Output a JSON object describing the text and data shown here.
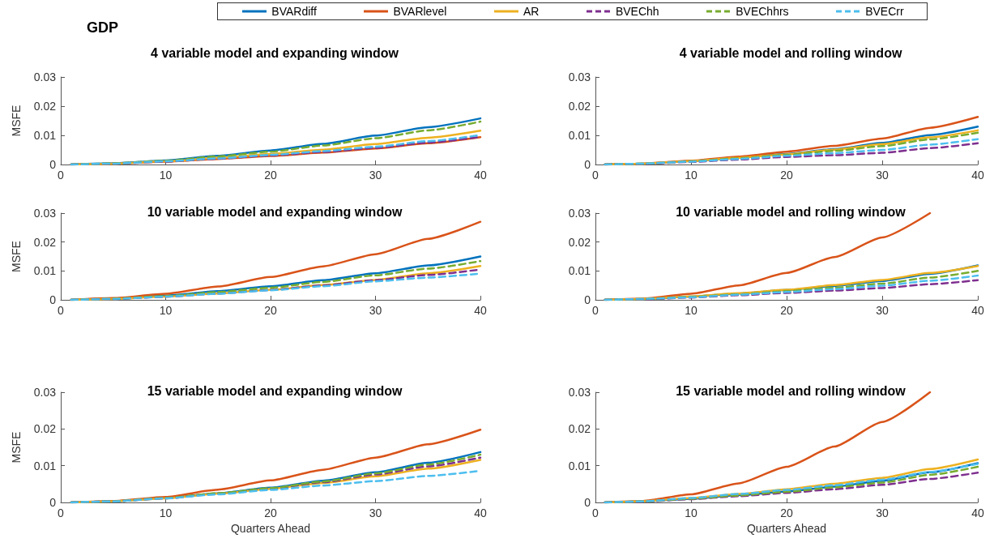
{
  "chart_data": [
    {
      "type": "line",
      "title": "4 variable model and expanding window",
      "ylabel": "MSFE",
      "annotations": [
        "GDP"
      ],
      "legend": "top",
      "grid": false,
      "marker": "none",
      "x": [
        1,
        5,
        10,
        15,
        20,
        25,
        30,
        35,
        40
      ],
      "xlim": [
        0,
        40
      ],
      "xticks": [
        0,
        10,
        20,
        30,
        40
      ],
      "ylim": [
        0,
        0.03
      ],
      "yticks": [
        0,
        0.01,
        0.02,
        0.03
      ],
      "series": [
        {
          "name": "BVARdiff",
          "color": "#0072bd",
          "line_style": "solid",
          "values": [
            0,
            0.0004,
            0.0014,
            0.003,
            0.0048,
            0.0071,
            0.0099,
            0.0128,
            0.0158
          ]
        },
        {
          "name": "BVARlevel",
          "color": "#d95319",
          "line_style": "solid",
          "values": [
            0,
            0.0003,
            0.001,
            0.0019,
            0.0029,
            0.0041,
            0.0055,
            0.0073,
            0.0094
          ]
        },
        {
          "name": "AR",
          "color": "#edb120",
          "line_style": "solid",
          "values": [
            0,
            0.0003,
            0.0011,
            0.0023,
            0.0036,
            0.0051,
            0.007,
            0.0092,
            0.0116
          ]
        },
        {
          "name": "BVEChh",
          "color": "#7e2f8e",
          "line_style": "dashed",
          "values": [
            0,
            0.0003,
            0.001,
            0.002,
            0.0031,
            0.0043,
            0.0057,
            0.0075,
            0.0095
          ]
        },
        {
          "name": "BVEChhrs",
          "color": "#77ac30",
          "line_style": "dashed",
          "values": [
            0,
            0.0004,
            0.0013,
            0.0028,
            0.0044,
            0.0065,
            0.009,
            0.0117,
            0.0147
          ]
        },
        {
          "name": "BVECrr",
          "color": "#4dbeee",
          "line_style": "dashed",
          "values": [
            0,
            0.0003,
            0.0011,
            0.0021,
            0.0033,
            0.0046,
            0.0061,
            0.008,
            0.0101
          ]
        }
      ]
    },
    {
      "type": "line",
      "title": "4 variable model and rolling window",
      "grid": false,
      "marker": "none",
      "x": [
        1,
        5,
        10,
        15,
        20,
        25,
        30,
        35,
        40
      ],
      "xlim": [
        0,
        40
      ],
      "xticks": [
        0,
        10,
        20,
        30,
        40
      ],
      "ylim": [
        0,
        0.03
      ],
      "yticks": [
        0,
        0.01,
        0.02,
        0.03
      ],
      "series": [
        {
          "color": "#0072bd",
          "line_style": "solid",
          "values": [
            0,
            0.0003,
            0.0012,
            0.0023,
            0.0036,
            0.0053,
            0.0074,
            0.0101,
            0.013
          ]
        },
        {
          "color": "#d95319",
          "line_style": "solid",
          "values": [
            0,
            0.0003,
            0.0013,
            0.0027,
            0.0044,
            0.0064,
            0.0089,
            0.0126,
            0.0163
          ]
        },
        {
          "color": "#edb120",
          "line_style": "solid",
          "values": [
            0,
            0.0003,
            0.0012,
            0.0023,
            0.0035,
            0.0051,
            0.007,
            0.0093,
            0.0117
          ]
        },
        {
          "color": "#7e2f8e",
          "line_style": "dashed",
          "values": [
            0,
            0.0002,
            0.0009,
            0.0017,
            0.0026,
            0.0032,
            0.004,
            0.0056,
            0.0073
          ]
        },
        {
          "color": "#77ac30",
          "line_style": "dashed",
          "values": [
            0,
            0.0003,
            0.0011,
            0.0021,
            0.0033,
            0.0047,
            0.0063,
            0.0086,
            0.0109
          ]
        },
        {
          "color": "#4dbeee",
          "line_style": "dashed",
          "values": [
            0,
            0.0003,
            0.001,
            0.0019,
            0.003,
            0.0039,
            0.005,
            0.0068,
            0.0087
          ]
        }
      ]
    },
    {
      "type": "line",
      "title": "10 variable model and expanding window",
      "ylabel": "MSFE",
      "grid": false,
      "marker": "none",
      "x": [
        1,
        5,
        10,
        15,
        20,
        25,
        30,
        35,
        40
      ],
      "xlim": [
        0,
        40
      ],
      "xticks": [
        0,
        10,
        20,
        30,
        40
      ],
      "ylim": [
        0,
        0.03
      ],
      "yticks": [
        0,
        0.01,
        0.02,
        0.03
      ],
      "series": [
        {
          "color": "#0072bd",
          "line_style": "solid",
          "values": [
            0,
            0.0004,
            0.0015,
            0.003,
            0.0047,
            0.0068,
            0.0092,
            0.0119,
            0.015
          ]
        },
        {
          "color": "#d95319",
          "line_style": "solid",
          "values": [
            0,
            0.0006,
            0.0021,
            0.0046,
            0.0079,
            0.0116,
            0.0158,
            0.0211,
            0.027
          ]
        },
        {
          "color": "#edb120",
          "line_style": "solid",
          "values": [
            0,
            0.0003,
            0.0011,
            0.0022,
            0.0035,
            0.0051,
            0.0069,
            0.0092,
            0.0117
          ]
        },
        {
          "color": "#7e2f8e",
          "line_style": "dashed",
          "values": [
            0,
            0.0003,
            0.0011,
            0.0022,
            0.0034,
            0.005,
            0.0068,
            0.0086,
            0.0105
          ]
        },
        {
          "color": "#77ac30",
          "line_style": "dashed",
          "values": [
            0,
            0.0004,
            0.0013,
            0.0027,
            0.0042,
            0.0062,
            0.0085,
            0.0108,
            0.0134
          ]
        },
        {
          "color": "#4dbeee",
          "line_style": "dashed",
          "values": [
            0,
            0.0003,
            0.0011,
            0.0021,
            0.0033,
            0.0047,
            0.0064,
            0.0077,
            0.0091
          ]
        }
      ]
    },
    {
      "type": "line",
      "title": "10 variable model and rolling window",
      "grid": false,
      "marker": "none",
      "x": [
        1,
        5,
        10,
        15,
        20,
        25,
        30,
        35,
        40
      ],
      "xlim": [
        0,
        40
      ],
      "xticks": [
        0,
        10,
        20,
        30,
        40
      ],
      "ylim": [
        0,
        0.03
      ],
      "yticks": [
        0,
        0.01,
        0.02,
        0.03
      ],
      "series": [
        {
          "color": "#0072bd",
          "line_style": "solid",
          "values": [
            0,
            0.0003,
            0.0011,
            0.0022,
            0.0034,
            0.0048,
            0.0065,
            0.009,
            0.0119
          ]
        },
        {
          "color": "#d95319",
          "line_style": "solid",
          "values": [
            0,
            0.0004,
            0.0021,
            0.005,
            0.0093,
            0.0148,
            0.0216,
            0.03,
            null
          ]
        },
        {
          "color": "#edb120",
          "line_style": "solid",
          "values": [
            0,
            0.0003,
            0.0012,
            0.0023,
            0.0035,
            0.0051,
            0.0069,
            0.0093,
            0.0117
          ]
        },
        {
          "color": "#7e2f8e",
          "line_style": "dashed",
          "values": [
            0,
            0.0002,
            0.0008,
            0.0016,
            0.0024,
            0.0032,
            0.0041,
            0.0054,
            0.0068
          ]
        },
        {
          "color": "#77ac30",
          "line_style": "dashed",
          "values": [
            0,
            0.0003,
            0.001,
            0.0019,
            0.003,
            0.0042,
            0.0056,
            0.0077,
            0.01
          ]
        },
        {
          "color": "#4dbeee",
          "line_style": "dashed",
          "values": [
            0,
            0.0003,
            0.0009,
            0.0018,
            0.0027,
            0.0037,
            0.0049,
            0.0066,
            0.0084
          ]
        }
      ]
    },
    {
      "type": "line",
      "title": "15 variable model and expanding window",
      "xlabel": "Quarters Ahead",
      "ylabel": "MSFE",
      "grid": false,
      "marker": "none",
      "x": [
        1,
        5,
        10,
        15,
        20,
        25,
        30,
        35,
        40
      ],
      "xlim": [
        0,
        40
      ],
      "xticks": [
        0,
        10,
        20,
        30,
        40
      ],
      "ylim": [
        0,
        0.03
      ],
      "yticks": [
        0,
        0.01,
        0.02,
        0.03
      ],
      "series": [
        {
          "color": "#0072bd",
          "line_style": "solid",
          "values": [
            0,
            0.0003,
            0.0012,
            0.0025,
            0.004,
            0.0059,
            0.0082,
            0.0108,
            0.0137
          ]
        },
        {
          "color": "#d95319",
          "line_style": "solid",
          "values": [
            0,
            0.0004,
            0.0015,
            0.0035,
            0.006,
            0.0089,
            0.0122,
            0.0158,
            0.0198
          ]
        },
        {
          "color": "#edb120",
          "line_style": "solid",
          "values": [
            0,
            0.0003,
            0.0011,
            0.0024,
            0.0037,
            0.0053,
            0.0071,
            0.0092,
            0.0116
          ]
        },
        {
          "color": "#7e2f8e",
          "line_style": "dashed",
          "values": [
            0,
            0.0003,
            0.0011,
            0.0024,
            0.0038,
            0.0055,
            0.0076,
            0.0098,
            0.0122
          ]
        },
        {
          "color": "#77ac30",
          "line_style": "dashed",
          "values": [
            0,
            0.0003,
            0.0012,
            0.0025,
            0.0039,
            0.0057,
            0.0079,
            0.0103,
            0.013
          ]
        },
        {
          "color": "#4dbeee",
          "line_style": "dashed",
          "values": [
            0,
            0.0003,
            0.0011,
            0.0022,
            0.0034,
            0.0046,
            0.0058,
            0.0072,
            0.0086
          ]
        }
      ]
    },
    {
      "type": "line",
      "title": "15 variable model and rolling window",
      "xlabel": "Quarters Ahead",
      "grid": false,
      "marker": "none",
      "x": [
        1,
        5,
        10,
        15,
        20,
        25,
        30,
        35,
        40
      ],
      "xlim": [
        0,
        40
      ],
      "xticks": [
        0,
        10,
        20,
        30,
        40
      ],
      "ylim": [
        0,
        0.03
      ],
      "yticks": [
        0,
        0.01,
        0.02,
        0.03
      ],
      "series": [
        {
          "color": "#0072bd",
          "line_style": "solid",
          "values": [
            0,
            0.0003,
            0.001,
            0.002,
            0.003,
            0.0043,
            0.0059,
            0.0082,
            0.0107
          ]
        },
        {
          "color": "#d95319",
          "line_style": "solid",
          "values": [
            0,
            0.0004,
            0.0022,
            0.0052,
            0.0097,
            0.0152,
            0.0219,
            0.03,
            null
          ]
        },
        {
          "color": "#edb120",
          "line_style": "solid",
          "values": [
            0,
            0.0003,
            0.0012,
            0.0023,
            0.0036,
            0.0051,
            0.0067,
            0.0091,
            0.0117
          ]
        },
        {
          "color": "#7e2f8e",
          "line_style": "dashed",
          "values": [
            0,
            0.0002,
            0.0009,
            0.0017,
            0.0026,
            0.0036,
            0.0048,
            0.0064,
            0.0081
          ]
        },
        {
          "color": "#77ac30",
          "line_style": "dashed",
          "values": [
            0,
            0.0003,
            0.001,
            0.0019,
            0.0029,
            0.0041,
            0.0054,
            0.0075,
            0.0097
          ]
        },
        {
          "color": "#4dbeee",
          "line_style": "dashed",
          "values": [
            0,
            0.0003,
            0.0012,
            0.0023,
            0.0034,
            0.0047,
            0.0062,
            0.0083,
            0.0105
          ]
        }
      ]
    }
  ]
}
